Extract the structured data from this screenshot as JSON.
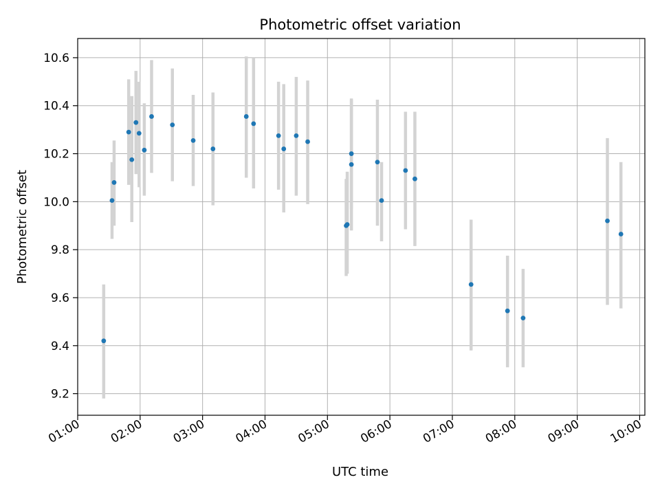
{
  "chart_data": {
    "type": "scatter",
    "title": "Photometric offset variation",
    "xlabel": "UTC time",
    "ylabel": "Photometric offset",
    "grid": true,
    "xlim": [
      "01:00",
      "10:05"
    ],
    "ylim": [
      9.11,
      10.68
    ],
    "x_ticks": [
      "01:00",
      "02:00",
      "03:00",
      "04:00",
      "05:00",
      "06:00",
      "07:00",
      "08:00",
      "09:00",
      "10:00"
    ],
    "y_ticks": [
      "9.2",
      "9.4",
      "9.6",
      "9.8",
      "10.0",
      "10.2",
      "10.4",
      "10.6"
    ],
    "colors": {
      "points": "#1f77b4",
      "error_bars": "#d3d3d3",
      "grid": "#b0b0b0"
    },
    "points": [
      {
        "x": "01:25",
        "y": 9.42,
        "low": 9.18,
        "high": 9.655
      },
      {
        "x": "01:33",
        "y": 10.005,
        "low": 9.845,
        "high": 10.165
      },
      {
        "x": "01:35",
        "y": 10.08,
        "low": 9.9,
        "high": 10.255
      },
      {
        "x": "01:49",
        "y": 10.29,
        "low": 10.07,
        "high": 10.51
      },
      {
        "x": "01:52",
        "y": 10.175,
        "low": 9.915,
        "high": 10.44
      },
      {
        "x": "01:56",
        "y": 10.33,
        "low": 10.115,
        "high": 10.545
      },
      {
        "x": "01:59",
        "y": 10.285,
        "low": 10.06,
        "high": 10.5
      },
      {
        "x": "02:04",
        "y": 10.215,
        "low": 10.025,
        "high": 10.41
      },
      {
        "x": "02:11",
        "y": 10.355,
        "low": 10.12,
        "high": 10.59
      },
      {
        "x": "02:31",
        "y": 10.32,
        "low": 10.085,
        "high": 10.555
      },
      {
        "x": "02:51",
        "y": 10.255,
        "low": 10.065,
        "high": 10.445
      },
      {
        "x": "03:10",
        "y": 10.22,
        "low": 9.985,
        "high": 10.455
      },
      {
        "x": "03:42",
        "y": 10.355,
        "low": 10.1,
        "high": 10.605
      },
      {
        "x": "03:49",
        "y": 10.325,
        "low": 10.055,
        "high": 10.6
      },
      {
        "x": "04:13",
        "y": 10.275,
        "low": 10.05,
        "high": 10.5
      },
      {
        "x": "04:18",
        "y": 10.22,
        "low": 9.955,
        "high": 10.49
      },
      {
        "x": "04:30",
        "y": 10.275,
        "low": 10.025,
        "high": 10.52
      },
      {
        "x": "04:41",
        "y": 10.25,
        "low": 9.99,
        "high": 10.505
      },
      {
        "x": "05:18",
        "y": 9.9,
        "low": 9.69,
        "high": 10.095
      },
      {
        "x": "05:19",
        "y": 9.905,
        "low": 9.7,
        "high": 10.125
      },
      {
        "x": "05:23",
        "y": 10.2,
        "low": 9.97,
        "high": 10.43
      },
      {
        "x": "05:23",
        "y": 10.155,
        "low": 9.88,
        "high": 10.425
      },
      {
        "x": "05:48",
        "y": 10.165,
        "low": 9.9,
        "high": 10.425
      },
      {
        "x": "05:52",
        "y": 10.005,
        "low": 9.835,
        "high": 10.165
      },
      {
        "x": "06:15",
        "y": 10.13,
        "low": 9.885,
        "high": 10.375
      },
      {
        "x": "06:24",
        "y": 10.095,
        "low": 9.815,
        "high": 10.375
      },
      {
        "x": "07:18",
        "y": 9.655,
        "low": 9.38,
        "high": 9.925
      },
      {
        "x": "07:53",
        "y": 9.545,
        "low": 9.31,
        "high": 9.775
      },
      {
        "x": "08:08",
        "y": 9.515,
        "low": 9.31,
        "high": 9.72
      },
      {
        "x": "09:29",
        "y": 9.92,
        "low": 9.57,
        "high": 10.265
      },
      {
        "x": "09:42",
        "y": 9.865,
        "low": 9.555,
        "high": 10.165
      }
    ]
  }
}
